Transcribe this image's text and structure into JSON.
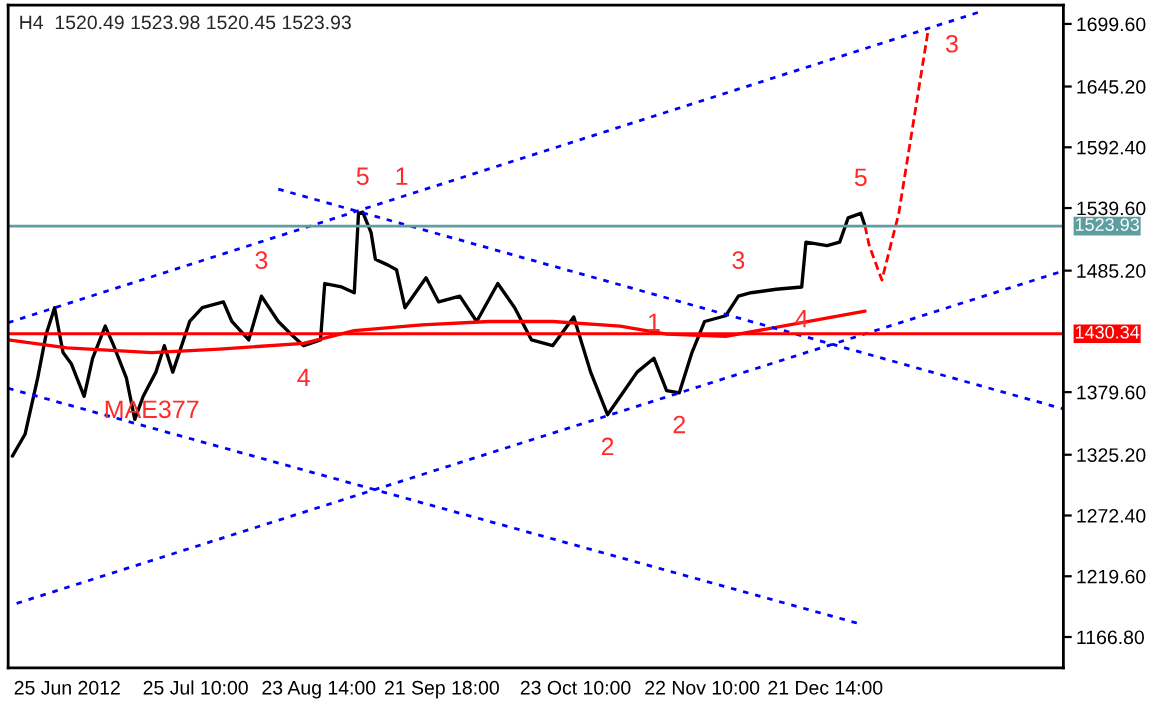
{
  "chart_data": {
    "type": "line",
    "title": "H4  1520.49 1523.98 1520.45 1523.93",
    "xlim": [
      "2012-06-11",
      "2013-02-16"
    ],
    "ylim": [
      1140,
      1716
    ],
    "xticks": [
      {
        "value": "2012-06-25",
        "label": "25 Jun 2012"
      },
      {
        "value": "2012-07-25T10:00",
        "label": "25 Jul 10:00"
      },
      {
        "value": "2012-08-23T14:00",
        "label": "23 Aug 14:00"
      },
      {
        "value": "2012-09-21T18:00",
        "label": "21 Sep 18:00"
      },
      {
        "value": "2012-10-23T10:00",
        "label": "23 Oct 10:00"
      },
      {
        "value": "2012-11-22T10:00",
        "label": "22 Nov 10:00"
      },
      {
        "value": "2012-12-21T14:00",
        "label": "21 Dec 14:00"
      }
    ],
    "yticks": [
      {
        "value": 1699.6,
        "label": "1699.60"
      },
      {
        "value": 1645.2,
        "label": "1645.20"
      },
      {
        "value": 1592.4,
        "label": "1592.40"
      },
      {
        "value": 1539.6,
        "label": "1539.60"
      },
      {
        "value": 1485.2,
        "label": "1485.20"
      },
      {
        "value": 1379.6,
        "label": "1379.60"
      },
      {
        "value": 1325.2,
        "label": "1325.20"
      },
      {
        "value": 1272.4,
        "label": "1272.40"
      },
      {
        "value": 1219.6,
        "label": "1219.60"
      },
      {
        "value": 1166.8,
        "label": "1166.80"
      }
    ],
    "grid": false,
    "legend": false,
    "series": [
      {
        "color": "#000000",
        "line_style": "solid",
        "x": [
          "2012-06-12",
          "2012-06-15",
          "2012-06-18",
          "2012-06-20",
          "2012-06-22",
          "2012-06-24",
          "2012-06-26",
          "2012-06-29",
          "2012-07-01",
          "2012-07-04",
          "2012-07-06",
          "2012-07-09",
          "2012-07-11",
          "2012-07-13",
          "2012-07-16",
          "2012-07-18",
          "2012-07-20",
          "2012-07-24",
          "2012-07-27",
          "2012-08-01",
          "2012-08-03",
          "2012-08-07",
          "2012-08-10",
          "2012-08-14",
          "2012-08-17",
          "2012-08-20",
          "2012-08-24",
          "2012-08-25",
          "2012-08-29",
          "2012-09-01",
          "2012-09-02",
          "2012-09-03",
          "2012-09-05",
          "2012-09-06",
          "2012-09-09",
          "2012-09-11",
          "2012-09-13",
          "2012-09-18",
          "2012-09-21",
          "2012-09-26",
          "2012-09-30",
          "2012-10-05",
          "2012-10-09",
          "2012-10-13",
          "2012-10-18",
          "2012-10-23",
          "2012-10-27",
          "2012-10-31",
          "2012-11-04",
          "2012-11-07",
          "2012-11-11",
          "2012-11-14",
          "2012-11-17",
          "2012-11-20",
          "2012-11-23",
          "2012-11-28",
          "2012-12-01",
          "2012-12-04",
          "2012-12-10",
          "2012-12-16",
          "2012-12-17",
          "2012-12-22",
          "2012-12-25",
          "2012-12-27",
          "2012-12-30",
          "2012-12-31"
        ],
        "values": [
          1324,
          1343,
          1392,
          1430,
          1453,
          1414,
          1404,
          1376,
          1409,
          1437,
          1420,
          1392,
          1356,
          1376,
          1397,
          1420,
          1397,
          1441,
          1453,
          1458,
          1441,
          1425,
          1463,
          1441,
          1430,
          1420,
          1425,
          1474,
          1471,
          1466,
          1535,
          1536,
          1518,
          1495,
          1490,
          1486,
          1453,
          1479,
          1458,
          1463,
          1441,
          1474,
          1453,
          1425,
          1420,
          1445,
          1397,
          1360,
          1381,
          1397,
          1409,
          1381,
          1379,
          1414,
          1441,
          1446,
          1463,
          1466,
          1469,
          1471,
          1510,
          1507,
          1510,
          1531,
          1535,
          1524
        ]
      },
      {
        "color": "#ff0000",
        "line_style": "solid",
        "x": [
          "2012-06-11",
          "2012-06-25",
          "2012-07-15",
          "2012-07-31",
          "2012-08-20",
          "2012-09-01",
          "2012-09-17",
          "2012-10-03",
          "2012-10-18",
          "2012-11-03",
          "2012-11-14",
          "2012-11-28",
          "2012-12-01",
          "2012-12-31"
        ],
        "values": [
          1425,
          1418,
          1414,
          1417,
          1422,
          1433,
          1438,
          1441,
          1441,
          1437,
          1430,
          1428,
          1430,
          1450
        ]
      },
      {
        "color": "#ff0000",
        "line_style": "dashed",
        "x": [
          "2012-12-31",
          "2013-01-01",
          "2013-01-04",
          "2013-01-08",
          "2013-01-15"
        ],
        "values": [
          1524,
          1507,
          1477,
          1535,
          1695
        ]
      },
      {
        "color": "#0000ff",
        "line_style": "dotted",
        "x": [
          "2012-06-11",
          "2013-01-28"
        ],
        "values": [
          1440,
          1711
        ]
      },
      {
        "color": "#0000ff",
        "line_style": "dotted",
        "x": [
          "2012-06-13",
          "2013-02-16"
        ],
        "values": [
          1196,
          1485
        ]
      },
      {
        "color": "#0000ff",
        "line_style": "dotted",
        "x": [
          "2012-08-14",
          "2013-02-16"
        ],
        "values": [
          1556,
          1365
        ]
      },
      {
        "color": "#0000ff",
        "line_style": "dotted",
        "x": [
          "2012-06-11",
          "2012-12-30"
        ],
        "values": [
          1383,
          1178
        ]
      }
    ],
    "ref_lines": [
      {
        "axis": "y",
        "value": 1523.93,
        "label": "1523.93",
        "color": "#5f9ea0"
      },
      {
        "axis": "y",
        "value": 1430.34,
        "label": "1430.34",
        "color": "#ff0000"
      }
    ],
    "annotations": [
      {
        "text": "MAE377",
        "x": "2012-07-15",
        "y": 1414
      },
      {
        "text": "3",
        "x": "2012-08-10",
        "y": 1463
      },
      {
        "text": "4",
        "x": "2012-08-20",
        "y": 1420
      },
      {
        "text": "5",
        "x": "2012-09-03",
        "y": 1536
      },
      {
        "text": "1",
        "x": "2012-09-03",
        "y": 1536
      },
      {
        "text": "2",
        "x": "2012-10-31",
        "y": 1360
      },
      {
        "text": "1",
        "x": "2012-11-11",
        "y": 1409
      },
      {
        "text": "2",
        "x": "2012-11-17",
        "y": 1379
      },
      {
        "text": "3",
        "x": "2012-12-01",
        "y": 1463
      },
      {
        "text": "4",
        "x": "2012-12-16",
        "y": 1471
      },
      {
        "text": "5",
        "x": "2012-12-30",
        "y": 1535
      },
      {
        "text": "3",
        "x": "2013-01-15",
        "y": 1695
      }
    ]
  }
}
